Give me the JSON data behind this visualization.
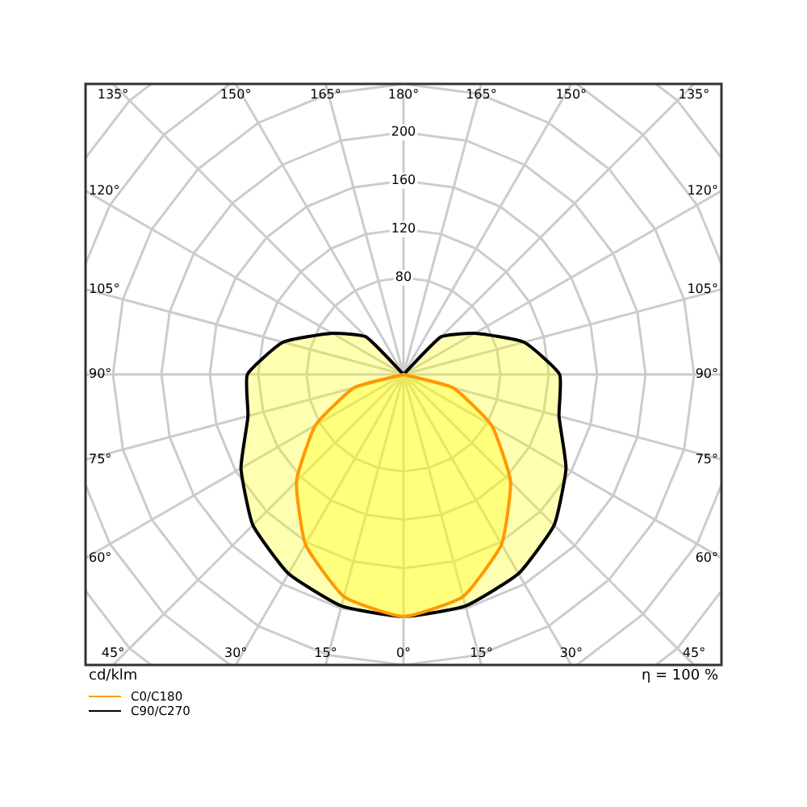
{
  "chart_data": {
    "type": "radar",
    "ylabel": "cd/klm",
    "annotations": [
      "η = 100 %"
    ],
    "categories": [
      "180°",
      "165°",
      "150°",
      "135°",
      "120°",
      "105°",
      "90°",
      "75°",
      "60°",
      "45°",
      "30°",
      "15°",
      "0°",
      "15°",
      "30°",
      "45°",
      "60°",
      "75°",
      "90°",
      "105°",
      "120°",
      "135°",
      "150°",
      "165°"
    ],
    "series": [
      {
        "name": "C0/C180",
        "color": "#ff9900",
        "values": [
          0,
          0,
          0,
          0,
          0,
          0,
          0,
          42,
          84,
          125,
          162,
          190,
          200,
          190,
          162,
          125,
          84,
          42,
          0,
          0,
          0,
          0,
          0,
          0
        ]
      },
      {
        "name": "C90/C270",
        "color": "#000000",
        "values": [
          0,
          0,
          0,
          44,
          68,
          103,
          129,
          133,
          155,
          176,
          190,
          198,
          200,
          198,
          190,
          176,
          155,
          133,
          129,
          103,
          68,
          44,
          0,
          0
        ]
      }
    ],
    "ylim": [
      0,
      360
    ],
    "yticks": [
      80,
      120,
      160,
      200
    ],
    "grid": true,
    "legend": "bottom left",
    "marker": "none",
    "line_style": "solid"
  }
}
